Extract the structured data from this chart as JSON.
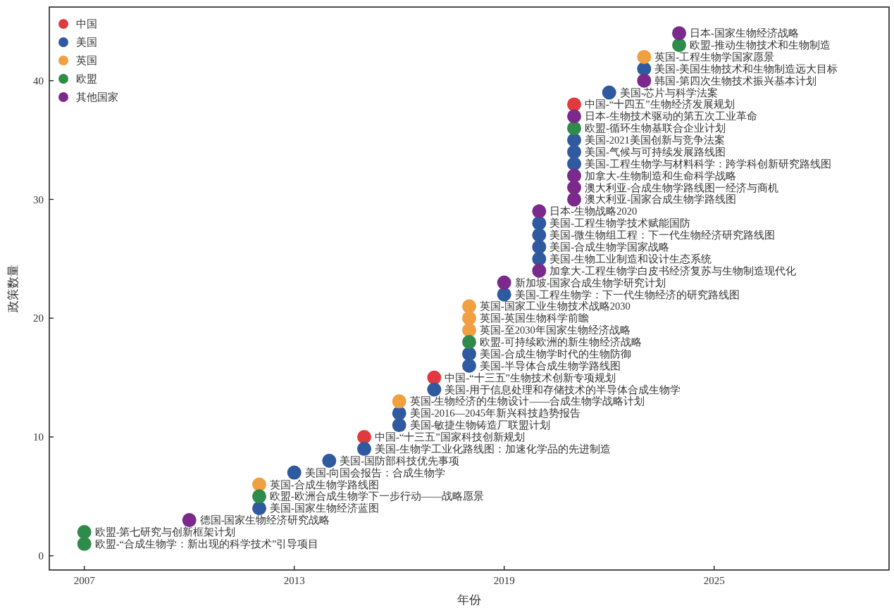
{
  "chart_data": {
    "type": "scatter",
    "xlabel": "年份",
    "ylabel": "政策数量",
    "xlim": [
      2006,
      2030
    ],
    "ylim": [
      -1.2,
      46.2
    ],
    "xticks": [
      2007,
      2013,
      2019,
      2025
    ],
    "yticks": [
      0,
      10,
      20,
      30,
      40
    ],
    "grid": false,
    "legend": "top left",
    "marker": "circle",
    "series": [
      {
        "name": "中国",
        "color": "#e03a3e",
        "x": [
          2015,
          2017,
          2021
        ],
        "values": [
          10,
          15,
          38
        ]
      },
      {
        "name": "美国",
        "color": "#2f5aa0",
        "x": [
          2012,
          2013,
          2014,
          2015,
          2016,
          2016,
          2017,
          2018,
          2018,
          2019,
          2020,
          2020,
          2020,
          2020,
          2021,
          2021,
          2021,
          2022,
          2023
        ],
        "values": [
          4,
          7,
          8,
          9,
          11,
          12,
          14,
          16,
          17,
          22,
          25,
          26,
          27,
          28,
          33,
          34,
          35,
          39,
          41
        ]
      },
      {
        "name": "英国",
        "color": "#f0a040",
        "x": [
          2012,
          2016,
          2018,
          2018,
          2018,
          2023
        ],
        "values": [
          6,
          13,
          19,
          20,
          21,
          42
        ]
      },
      {
        "name": "欧盟",
        "color": "#2e8b4a",
        "x": [
          2007,
          2007,
          2012,
          2018,
          2021,
          2024
        ],
        "values": [
          1,
          2,
          5,
          18,
          36,
          43
        ]
      },
      {
        "name": "其他国家",
        "color": "#7b2a8c",
        "x": [
          2010,
          2019,
          2020,
          2020,
          2021,
          2021,
          2021,
          2021,
          2023,
          2024
        ],
        "values": [
          3,
          23,
          24,
          29,
          30,
          31,
          32,
          37,
          40,
          44
        ]
      }
    ],
    "annotations": [
      {
        "text": "欧盟-“合成生物学：新出现的科学技术”引导项目",
        "x": 2007,
        "y": 1
      },
      {
        "text": "欧盟-第七研究与创新框架计划",
        "x": 2007,
        "y": 2
      },
      {
        "text": "德国-国家生物经济研究战略",
        "x": 2010,
        "y": 3
      },
      {
        "text": "美国-国家生物经济蓝图",
        "x": 2012,
        "y": 4
      },
      {
        "text": "欧盟-欧洲合成生物学下一步行动——战略愿景",
        "x": 2012,
        "y": 5
      },
      {
        "text": "英国-合成生物学路线图",
        "x": 2012,
        "y": 6
      },
      {
        "text": "美国-向国会报告：合成生物学",
        "x": 2013,
        "y": 7
      },
      {
        "text": "美国-国防部科技优先事项",
        "x": 2014,
        "y": 8
      },
      {
        "text": "美国-生物学工业化路线图：加速化学品的先进制造",
        "x": 2015,
        "y": 9
      },
      {
        "text": "中国-“十三五”国家科技创新规划",
        "x": 2015,
        "y": 10
      },
      {
        "text": "美国-敏捷生物铸造厂联盟计划",
        "x": 2016,
        "y": 11
      },
      {
        "text": "美国-2016—2045年新兴科技趋势报告",
        "x": 2016,
        "y": 12
      },
      {
        "text": "英国-生物经济的生物设计——合成生物学战略计划",
        "x": 2016,
        "y": 13
      },
      {
        "text": "美国-用于信息处理和存储技术的半导体合成生物学",
        "x": 2017,
        "y": 14
      },
      {
        "text": "中国-“十三五”生物技术创新专项规划",
        "x": 2017,
        "y": 15
      },
      {
        "text": "美国-半导体合成生物学路线图",
        "x": 2018,
        "y": 16
      },
      {
        "text": "美国-合成生物学时代的生物防御",
        "x": 2018,
        "y": 17
      },
      {
        "text": "欧盟-可持续欧洲的新生物经济战略",
        "x": 2018,
        "y": 18
      },
      {
        "text": "英国-至2030年国家生物经济战略",
        "x": 2018,
        "y": 19
      },
      {
        "text": "英国-英国生物科学前瞻",
        "x": 2018,
        "y": 20
      },
      {
        "text": "英国-国家工业生物技术战略2030",
        "x": 2018,
        "y": 21
      },
      {
        "text": "美国-工程生物学：下一代生物经济的研究路线图",
        "x": 2019,
        "y": 22
      },
      {
        "text": "新加坡-国家合成生物学研究计划",
        "x": 2019,
        "y": 23
      },
      {
        "text": "加拿大-工程生物学白皮书经济复苏与生物制造现代化",
        "x": 2020,
        "y": 24
      },
      {
        "text": "美国-生物工业制造和设计生态系统",
        "x": 2020,
        "y": 25
      },
      {
        "text": "美国-合成生物学国家战略",
        "x": 2020,
        "y": 26
      },
      {
        "text": "美国-微生物组工程：下一代生物经济研究路线图",
        "x": 2020,
        "y": 27
      },
      {
        "text": "美国-工程生物学技术赋能国防",
        "x": 2020,
        "y": 28
      },
      {
        "text": "日本-生物战略2020",
        "x": 2020,
        "y": 29
      },
      {
        "text": "澳大利亚-国家合成生物学路线图",
        "x": 2021,
        "y": 30
      },
      {
        "text": "澳大利亚-合成生物学路线图一经济与商机",
        "x": 2021,
        "y": 31
      },
      {
        "text": "加拿大-生物制造和生命科学战略",
        "x": 2021,
        "y": 32
      },
      {
        "text": "美国-工程生物学与材料科学：跨学科创新研究路线图",
        "x": 2021,
        "y": 33
      },
      {
        "text": "美国-气候与可持续发展路线图",
        "x": 2021,
        "y": 34
      },
      {
        "text": "美国-2021美国创新与竞争法案",
        "x": 2021,
        "y": 35
      },
      {
        "text": "欧盟-循环生物基联合企业计划",
        "x": 2021,
        "y": 36
      },
      {
        "text": "日本-生物技术驱动的第五次工业革命",
        "x": 2021,
        "y": 37
      },
      {
        "text": "中国-“十四五”生物经济发展规划",
        "x": 2021,
        "y": 38
      },
      {
        "text": "美国-芯片与科学法案",
        "x": 2022,
        "y": 39
      },
      {
        "text": "韩国-第四次生物技术振兴基本计划",
        "x": 2023,
        "y": 40
      },
      {
        "text": "美国-美国生物技术和生物制造远大目标",
        "x": 2023,
        "y": 41
      },
      {
        "text": "英国-工程生物学国家愿景",
        "x": 2023,
        "y": 42
      },
      {
        "text": "欧盟-推动生物技术和生物制造",
        "x": 2024,
        "y": 43
      },
      {
        "text": "日本-国家生物经济战略",
        "x": 2024,
        "y": 44
      }
    ]
  }
}
